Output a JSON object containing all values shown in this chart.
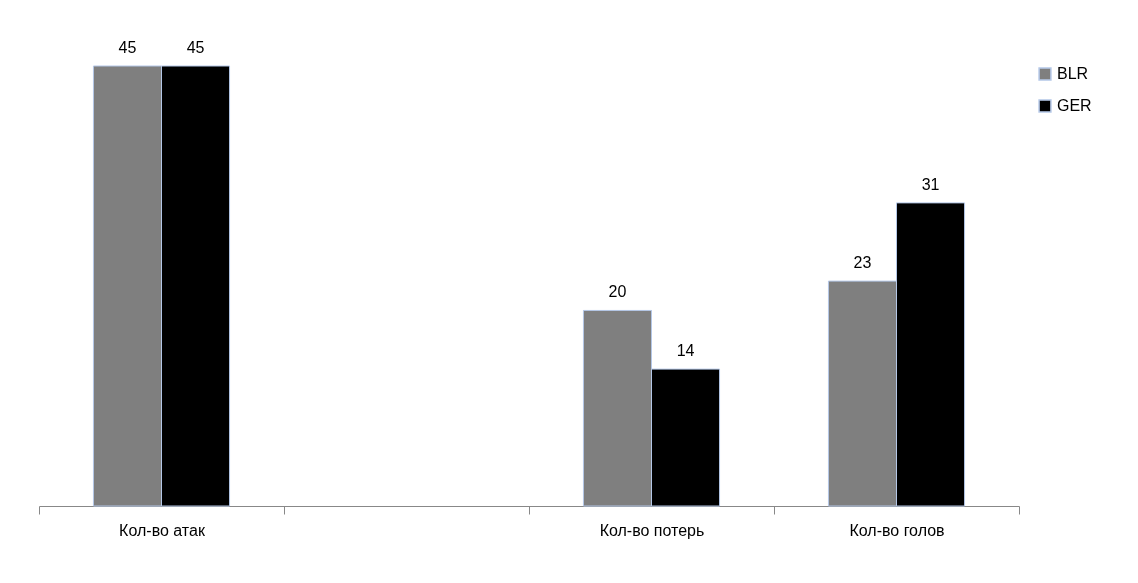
{
  "chart_data": {
    "type": "bar",
    "categories": [
      "Кол-во атак",
      null,
      "Кол-во потерь",
      "Кол-во голов"
    ],
    "series": [
      {
        "name": "BLR",
        "color": "#7f7f7f",
        "values": [
          45,
          null,
          20,
          23
        ]
      },
      {
        "name": "GER",
        "color": "#000000",
        "values": [
          45,
          null,
          14,
          31
        ]
      }
    ],
    "data_labels": true,
    "legend": "right"
  }
}
